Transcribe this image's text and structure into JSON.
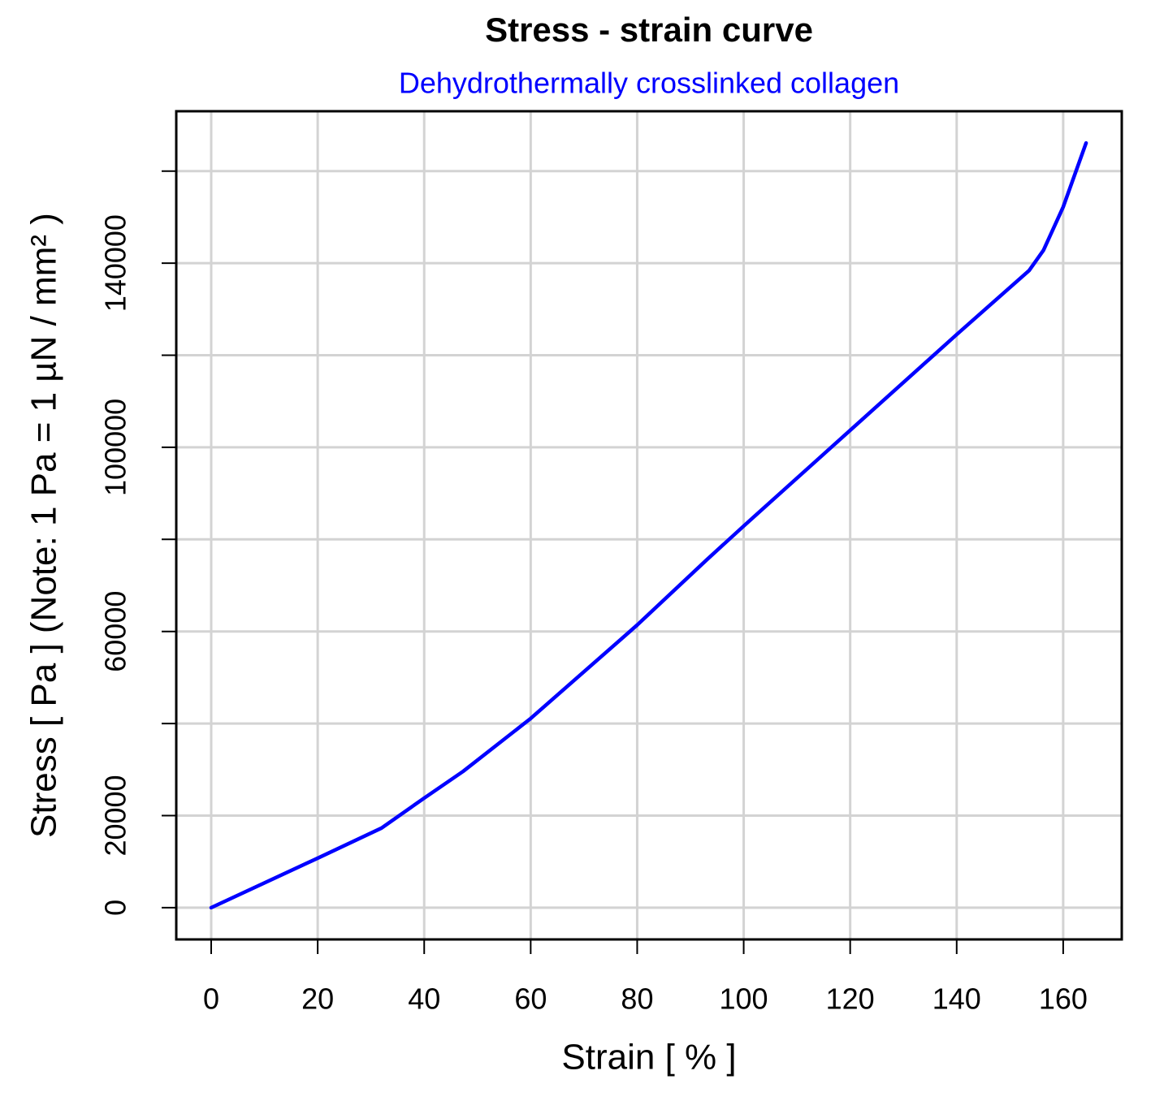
{
  "chart_data": {
    "type": "line",
    "title": "Stress - strain curve",
    "subtitle": "Dehydrothermally crosslinked collagen",
    "x_label": "Strain [ % ]",
    "y_label": "Stress [ Pa ]  (Note: 1 Pa = 1 µN / mm²  )",
    "x": [
      0,
      20,
      32,
      40,
      47.3,
      60,
      80,
      93,
      100,
      120,
      132.7,
      140,
      153.6,
      156.3,
      160,
      164.3
    ],
    "series": [
      {
        "name": "Stress",
        "color": "#0000ff",
        "values": [
          0,
          10750,
          17300,
          23800,
          29600,
          41100,
          61400,
          75500,
          82900,
          103700,
          116900,
          124500,
          138400,
          142800,
          152200,
          166100
        ]
      }
    ],
    "xlim": [
      -6.56,
      171
    ],
    "ylim": [
      -6900,
      173000
    ],
    "xticks": [
      0,
      20,
      40,
      60,
      80,
      100,
      120,
      140,
      160
    ],
    "yticks": [
      0,
      20000,
      {
        "value": 40000,
        "label": null
      },
      60000,
      {
        "value": 80000,
        "label": null
      },
      100000,
      {
        "value": 120000,
        "label": null
      },
      140000,
      {
        "value": 160000,
        "label": null
      }
    ],
    "grid": true
  }
}
